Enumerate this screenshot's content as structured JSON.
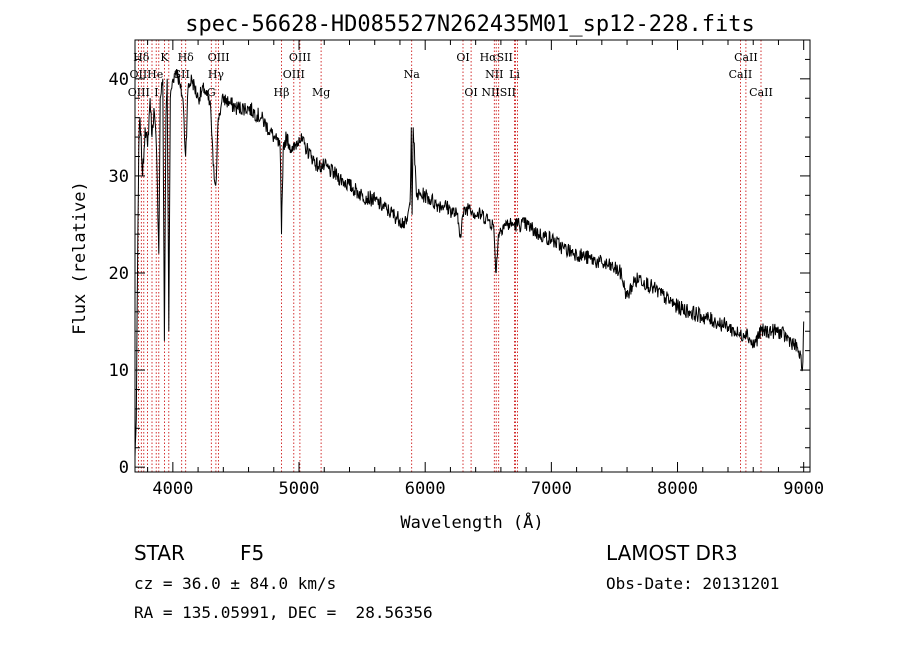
{
  "chart_data": {
    "type": "line",
    "title": "spec-56628-HD085527N262435M01_sp12-228.fits",
    "xlabel": "Wavelength (Å)",
    "ylabel": "Flux (relative)",
    "xlim": [
      3700,
      9050
    ],
    "ylim": [
      -0.5,
      44
    ],
    "xticks": [
      4000,
      5000,
      6000,
      7000,
      8000,
      9000
    ],
    "xtick_labels": [
      "4000",
      "5000",
      "6000",
      "7000",
      "8000",
      "9000"
    ],
    "yticks": [
      0,
      10,
      20,
      30,
      40
    ],
    "ytick_labels": [
      "0",
      "10",
      "20",
      "30",
      "40"
    ],
    "grid": false,
    "series": [
      {
        "name": "flux",
        "x": [
          3700,
          3710,
          3720,
          3730,
          3740,
          3760,
          3780,
          3800,
          3820,
          3835,
          3850,
          3870,
          3889,
          3900,
          3920,
          3933,
          3945,
          3955,
          3968,
          3980,
          4000,
          4030,
          4060,
          4080,
          4101,
          4120,
          4150,
          4200,
          4250,
          4300,
          4320,
          4340,
          4360,
          4380,
          4400,
          4450,
          4500,
          4600,
          4700,
          4800,
          4850,
          4861,
          4875,
          4900,
          4950,
          5000,
          5050,
          5100,
          5150,
          5200,
          5300,
          5400,
          5500,
          5600,
          5700,
          5800,
          5850,
          5880,
          5890,
          5896,
          5905,
          5930,
          5960,
          6000,
          6050,
          6100,
          6150,
          6200,
          6250,
          6280,
          6300,
          6350,
          6400,
          6450,
          6500,
          6540,
          6563,
          6580,
          6620,
          6700,
          6800,
          6900,
          7000,
          7100,
          7200,
          7300,
          7400,
          7500,
          7550,
          7600,
          7650,
          7700,
          7800,
          7900,
          8000,
          8100,
          8200,
          8300,
          8400,
          8498,
          8542,
          8600,
          8662,
          8700,
          8800,
          8900,
          8960,
          8990,
          9000
        ],
        "y": [
          1,
          5,
          20,
          33,
          36,
          30,
          35,
          33,
          38,
          34,
          37,
          33,
          22,
          38,
          40,
          13,
          36,
          40,
          14,
          38,
          40,
          41,
          39,
          38,
          32,
          39,
          40,
          38,
          39,
          37,
          31,
          29,
          36,
          37,
          38,
          37.5,
          37,
          37,
          36,
          34,
          33,
          24,
          33,
          34,
          32.5,
          34,
          33,
          32,
          31,
          31,
          30,
          29,
          28,
          27.5,
          26.5,
          25.5,
          25,
          27,
          35,
          26,
          35,
          28,
          28,
          28,
          27.5,
          27,
          27,
          26.5,
          26,
          24,
          26,
          27,
          26,
          26,
          25.5,
          25,
          20,
          24,
          25,
          25,
          25,
          24,
          23.5,
          22.5,
          22,
          21.5,
          21,
          20.5,
          20,
          17.5,
          19,
          19.5,
          18.5,
          17.5,
          16.5,
          16,
          15.5,
          15,
          14.5,
          13.5,
          14,
          12.5,
          14,
          14,
          14,
          13,
          12,
          10,
          15
        ]
      }
    ],
    "line_colors": {
      "spectrum": "#000000",
      "marker": "#c80000"
    },
    "annotations": [
      {
        "label": "Hδ",
        "x": 3750,
        "row": 1
      },
      {
        "label": "OII",
        "x": 3727,
        "row": 2
      },
      {
        "label": "OIII",
        "x": 3730,
        "row": 3
      },
      {
        "label": "K",
        "x": 3934,
        "row": 1
      },
      {
        "label": "He",
        "x": 3860,
        "row": 2
      },
      {
        "label": "I",
        "x": 3870,
        "row": 3
      },
      {
        "label": "Hδ",
        "x": 4102,
        "row": 1
      },
      {
        "label": "SII",
        "x": 4070,
        "row": 2
      },
      {
        "label": "OIII",
        "x": 4363,
        "row": 1
      },
      {
        "label": "Hγ",
        "x": 4341,
        "row": 2
      },
      {
        "label": "G",
        "x": 4305,
        "row": 3
      },
      {
        "label": "Hβ",
        "x": 4861,
        "row": 3
      },
      {
        "label": "OIII",
        "x": 5007,
        "row": 1
      },
      {
        "label": "OIII",
        "x": 4959,
        "row": 2
      },
      {
        "label": "Mg",
        "x": 5175,
        "row": 3
      },
      {
        "label": "Na",
        "x": 5893,
        "row": 2
      },
      {
        "label": "OI",
        "x": 6300,
        "row": 1
      },
      {
        "label": "OI",
        "x": 6364,
        "row": 3
      },
      {
        "label": "HαSII",
        "x": 6563,
        "row": 1
      },
      {
        "label": "NII",
        "x": 6548,
        "row": 2
      },
      {
        "label": "Li",
        "x": 6708,
        "row": 2
      },
      {
        "label": "NIISII",
        "x": 6583,
        "row": 3
      },
      {
        "label": "CaII",
        "x": 8542,
        "row": 1
      },
      {
        "label": "CaII",
        "x": 8498,
        "row": 2
      },
      {
        "label": "CaII",
        "x": 8662,
        "row": 3
      }
    ],
    "marker_lines": [
      3727,
      3750,
      3770,
      3798,
      3835,
      3868,
      3889,
      3934,
      3968,
      4070,
      4102,
      4305,
      4341,
      4363,
      4861,
      4959,
      5007,
      5175,
      5893,
      6300,
      6364,
      6548,
      6563,
      6583,
      6708,
      6716,
      6731,
      8498,
      8542,
      8662
    ]
  },
  "info": {
    "object_type": "STAR",
    "subclass": "F5",
    "survey": "LAMOST DR3",
    "redshift": "cz = 36.0 ± 84.0 km/s",
    "obs_date": "Obs-Date: 20131201",
    "coords": "RA = 135.05991, DEC =  28.56356"
  }
}
